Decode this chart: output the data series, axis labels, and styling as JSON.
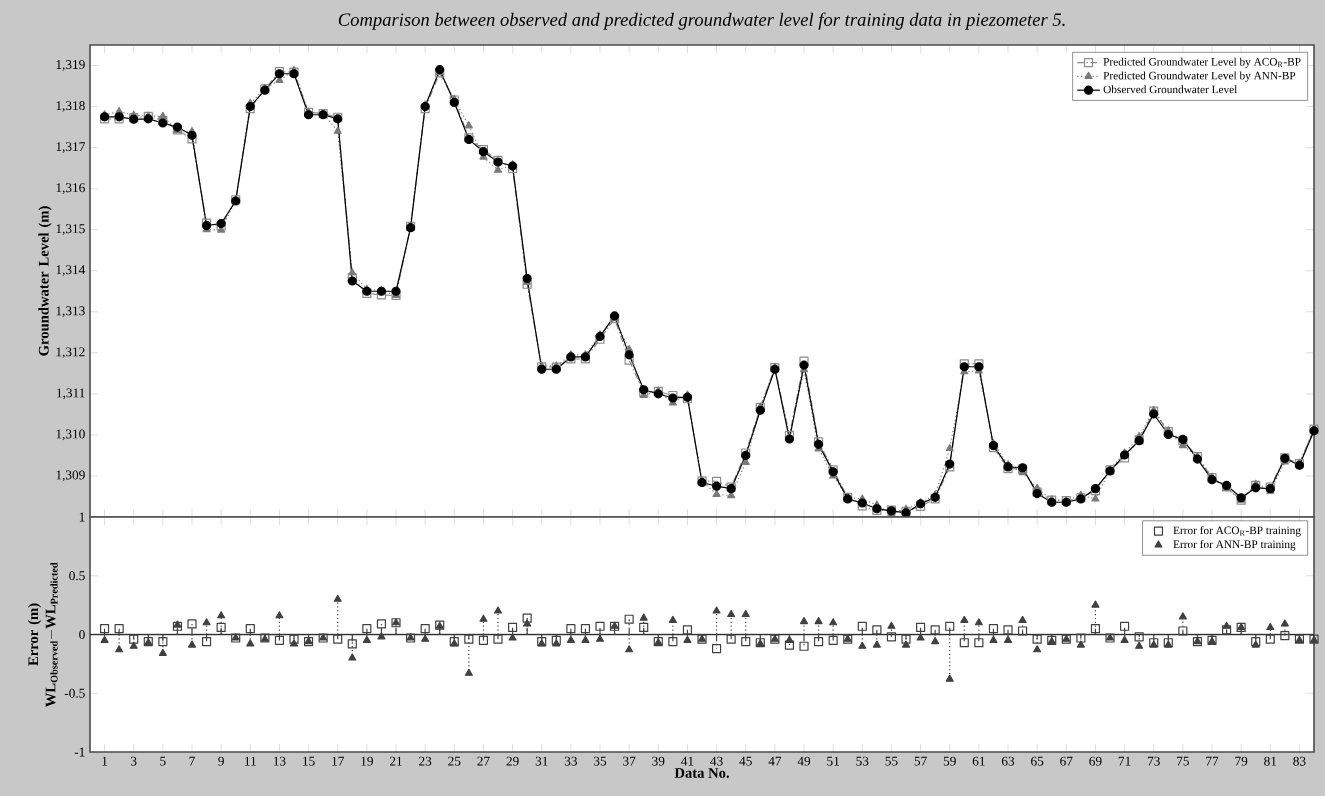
{
  "chart_data": [
    {
      "type": "line",
      "title": "Comparison between observed and predicted groundwater level for training data in piezometer 5.",
      "ylabel": "Groundwater Level (m)",
      "x": [
        1,
        2,
        3,
        4,
        5,
        6,
        7,
        8,
        9,
        10,
        11,
        12,
        13,
        14,
        15,
        16,
        17,
        18,
        19,
        20,
        21,
        22,
        23,
        24,
        25,
        26,
        27,
        28,
        29,
        30,
        31,
        32,
        33,
        34,
        35,
        36,
        37,
        38,
        39,
        40,
        41,
        42,
        43,
        44,
        45,
        46,
        47,
        48,
        49,
        50,
        51,
        52,
        53,
        54,
        55,
        56,
        57,
        58,
        59,
        60,
        61,
        62,
        63,
        64,
        65,
        66,
        67,
        68,
        69,
        70,
        71,
        72,
        73,
        74,
        75,
        76,
        77,
        78,
        79,
        80,
        81,
        82,
        83,
        84
      ],
      "xlim": [
        0,
        84
      ],
      "xticks": [
        1,
        3,
        5,
        7,
        9,
        11,
        13,
        15,
        17,
        19,
        21,
        23,
        25,
        27,
        29,
        31,
        33,
        35,
        37,
        39,
        41,
        43,
        45,
        47,
        49,
        51,
        53,
        55,
        57,
        59,
        61,
        63,
        65,
        67,
        69,
        71,
        73,
        75,
        77,
        79,
        81,
        83
      ],
      "ylim": [
        1308,
        1319.5
      ],
      "yticks": [
        {
          "value": 1309,
          "label": "1,309"
        },
        {
          "value": 1310,
          "label": "1,310"
        },
        {
          "value": 1311,
          "label": "1,311"
        },
        {
          "value": 1312,
          "label": "1,312"
        },
        {
          "value": 1313,
          "label": "1,313"
        },
        {
          "value": 1314,
          "label": "1,314"
        },
        {
          "value": 1315,
          "label": "1,315"
        },
        {
          "value": 1316,
          "label": "1,316"
        },
        {
          "value": 1317,
          "label": "1,317"
        },
        {
          "value": 1318,
          "label": "1,318"
        },
        {
          "value": 1319,
          "label": "1,319"
        }
      ],
      "tick_labels": "y",
      "legend": "top right",
      "series": [
        {
          "name": "Predicted Groundwater Level by ACO$_{R}$-BP",
          "color": "#8c8c8c",
          "marker": "square",
          "line_style": "dashed",
          "values": [
            1317.7,
            1317.7,
            1317.73,
            1317.76,
            1317.66,
            1317.43,
            1317.21,
            1315.16,
            1315.09,
            1315.73,
            1317.95,
            1318.43,
            1318.85,
            1318.84,
            1317.86,
            1317.83,
            1317.74,
            1313.83,
            1313.45,
            1313.41,
            1313.4,
            1315.08,
            1317.95,
            1318.82,
            1318.16,
            1317.24,
            1316.95,
            1316.69,
            1316.49,
            1313.67,
            1311.66,
            1311.65,
            1311.85,
            1311.85,
            1312.33,
            1312.83,
            1311.82,
            1311.04,
            1311.06,
            1310.96,
            1310.88,
            1308.88,
            1308.87,
            1308.73,
            1309.56,
            1310.67,
            1311.64,
            1309.99,
            1311.8,
            1309.83,
            1309.15,
            1308.48,
            1308.27,
            1308.16,
            1308.17,
            1308.14,
            1308.26,
            1308.44,
            1309.22,
            1311.73,
            1311.73,
            1309.69,
            1309.18,
            1309.17,
            1308.61,
            1308.41,
            1308.4,
            1308.47,
            1308.64,
            1309.15,
            1309.44,
            1309.88,
            1310.58,
            1310.08,
            1309.86,
            1309.47,
            1308.96,
            1308.73,
            1308.41,
            1308.77,
            1308.73,
            1309.44,
            1309.3,
            1310.14
          ]
        },
        {
          "name": "Predicted Groundwater Level by ANN-BP",
          "color": "#7a7a7a",
          "marker": "triangle",
          "line_style": "dotted",
          "values": [
            1317.8,
            1317.88,
            1317.79,
            1317.77,
            1317.76,
            1317.42,
            1317.39,
            1315.0,
            1314.99,
            1315.73,
            1318.08,
            1318.44,
            1318.64,
            1318.88,
            1317.86,
            1317.83,
            1317.4,
            1313.95,
            1313.55,
            1313.52,
            1313.4,
            1315.08,
            1318.04,
            1318.83,
            1318.18,
            1317.53,
            1316.77,
            1316.45,
            1316.58,
            1313.72,
            1311.68,
            1311.68,
            1311.95,
            1311.95,
            1312.44,
            1312.83,
            1312.08,
            1310.96,
            1311.07,
            1310.78,
            1310.97,
            1308.88,
            1308.55,
            1308.52,
            1309.33,
            1310.68,
            1311.64,
            1309.95,
            1311.59,
            1309.66,
            1309.0,
            1308.48,
            1308.44,
            1308.29,
            1308.08,
            1308.19,
            1308.35,
            1308.54,
            1309.67,
            1311.54,
            1311.56,
            1309.79,
            1309.27,
            1309.08,
            1308.7,
            1308.42,
            1308.4,
            1308.53,
            1308.44,
            1309.15,
            1309.56,
            1309.96,
            1310.6,
            1310.1,
            1309.74,
            1309.47,
            1308.97,
            1308.7,
            1308.41,
            1308.8,
            1308.63,
            1309.34,
            1309.31,
            1310.15
          ]
        },
        {
          "name": "Observed Groundwater Level",
          "color": "#000000",
          "marker": "circle",
          "line_style": "solid",
          "values": [
            1317.75,
            1317.75,
            1317.69,
            1317.7,
            1317.6,
            1317.5,
            1317.3,
            1315.1,
            1315.15,
            1315.7,
            1318.0,
            1318.4,
            1318.8,
            1318.8,
            1317.8,
            1317.8,
            1317.7,
            1313.75,
            1313.5,
            1313.5,
            1313.5,
            1315.05,
            1318.0,
            1318.9,
            1318.1,
            1317.2,
            1316.9,
            1316.65,
            1316.55,
            1313.81,
            1311.6,
            1311.6,
            1311.9,
            1311.9,
            1312.4,
            1312.9,
            1311.95,
            1311.1,
            1311.0,
            1310.9,
            1310.92,
            1308.84,
            1308.75,
            1308.69,
            1309.5,
            1310.6,
            1311.6,
            1309.9,
            1311.7,
            1309.77,
            1309.1,
            1308.44,
            1308.34,
            1308.2,
            1308.15,
            1308.1,
            1308.32,
            1308.48,
            1309.29,
            1311.66,
            1311.66,
            1309.74,
            1309.22,
            1309.2,
            1308.57,
            1308.36,
            1308.36,
            1308.44,
            1308.69,
            1309.12,
            1309.51,
            1309.86,
            1310.51,
            1310.01,
            1309.89,
            1309.41,
            1308.91,
            1308.77,
            1308.47,
            1308.71,
            1308.69,
            1309.43,
            1309.26,
            1310.1
          ]
        }
      ]
    },
    {
      "type": "lollipop",
      "xlabel": "Data No.",
      "ylabel": "\\begin{array}{c}\\text{Error (m)}\\\\ \\mathbf{WL}_{\\mathbf{Observed}}\\mathbf{-WL}_{\\mathbf{Predicted}}\\end{array}",
      "x": [
        1,
        2,
        3,
        4,
        5,
        6,
        7,
        8,
        9,
        10,
        11,
        12,
        13,
        14,
        15,
        16,
        17,
        18,
        19,
        20,
        21,
        22,
        23,
        24,
        25,
        26,
        27,
        28,
        29,
        30,
        31,
        32,
        33,
        34,
        35,
        36,
        37,
        38,
        39,
        40,
        41,
        42,
        43,
        44,
        45,
        46,
        47,
        48,
        49,
        50,
        51,
        52,
        53,
        54,
        55,
        56,
        57,
        58,
        59,
        60,
        61,
        62,
        63,
        64,
        65,
        66,
        67,
        68,
        69,
        70,
        71,
        72,
        73,
        74,
        75,
        76,
        77,
        78,
        79,
        80,
        81,
        82,
        83,
        84
      ],
      "xlim": [
        0,
        84
      ],
      "xticks": [
        1,
        3,
        5,
        7,
        9,
        11,
        13,
        15,
        17,
        19,
        21,
        23,
        25,
        27,
        29,
        31,
        33,
        35,
        37,
        39,
        41,
        43,
        45,
        47,
        49,
        51,
        53,
        55,
        57,
        59,
        61,
        63,
        65,
        67,
        69,
        71,
        73,
        75,
        77,
        79,
        81,
        83
      ],
      "ylim": [
        -1,
        1
      ],
      "yticks": [
        -1,
        -0.5,
        0,
        0.5,
        1
      ],
      "legend": "top right",
      "ref_lines": [
        {
          "axis": "y",
          "value": 0,
          "color": "#303030"
        }
      ],
      "series": [
        {
          "name": "Error for ACO$_{R}$-BP training",
          "color": "#404040",
          "marker": "square",
          "line_style": "dashed",
          "values": [
            0.05,
            0.05,
            -0.04,
            -0.06,
            -0.06,
            0.07,
            0.09,
            -0.06,
            0.06,
            -0.03,
            0.05,
            -0.03,
            -0.05,
            -0.04,
            -0.06,
            -0.03,
            -0.04,
            -0.08,
            0.05,
            0.09,
            0.1,
            -0.03,
            0.05,
            0.08,
            -0.06,
            -0.04,
            -0.05,
            -0.04,
            0.06,
            0.14,
            -0.06,
            -0.05,
            0.05,
            0.05,
            0.07,
            0.07,
            0.13,
            0.06,
            -0.06,
            -0.06,
            0.04,
            -0.04,
            -0.12,
            -0.04,
            -0.06,
            -0.07,
            -0.04,
            -0.09,
            -0.1,
            -0.06,
            -0.05,
            -0.04,
            0.07,
            0.04,
            -0.02,
            -0.04,
            0.06,
            0.04,
            0.07,
            -0.07,
            -0.07,
            0.05,
            0.04,
            0.03,
            -0.04,
            -0.05,
            -0.04,
            -0.03,
            0.05,
            -0.03,
            0.07,
            -0.02,
            -0.07,
            -0.07,
            0.03,
            -0.06,
            -0.05,
            0.04,
            0.06,
            -0.06,
            -0.04,
            -0.01,
            -0.04,
            -0.04
          ]
        },
        {
          "name": "Error for ANN-BP training",
          "color": "#404040",
          "marker": "triangle",
          "line_style": "dotted",
          "values": [
            -0.05,
            -0.13,
            -0.1,
            -0.07,
            -0.16,
            0.08,
            -0.09,
            0.1,
            0.16,
            -0.03,
            -0.08,
            -0.04,
            0.16,
            -0.08,
            -0.06,
            -0.03,
            0.3,
            -0.2,
            -0.05,
            -0.02,
            0.1,
            -0.03,
            -0.04,
            0.07,
            -0.08,
            -0.33,
            0.13,
            0.2,
            -0.03,
            0.09,
            -0.08,
            -0.08,
            -0.05,
            -0.05,
            -0.04,
            0.07,
            -0.13,
            0.14,
            -0.07,
            0.12,
            -0.05,
            -0.04,
            0.2,
            0.17,
            0.17,
            -0.08,
            -0.04,
            -0.05,
            0.11,
            0.11,
            0.1,
            -0.04,
            -0.1,
            -0.09,
            0.07,
            -0.09,
            -0.03,
            -0.06,
            -0.38,
            0.12,
            0.1,
            -0.05,
            -0.05,
            0.12,
            -0.13,
            -0.06,
            -0.04,
            -0.09,
            0.25,
            -0.03,
            -0.05,
            -0.1,
            -0.09,
            -0.09,
            0.15,
            -0.06,
            -0.06,
            0.07,
            0.06,
            -0.09,
            0.06,
            0.09,
            -0.05,
            -0.05
          ]
        }
      ]
    }
  ]
}
